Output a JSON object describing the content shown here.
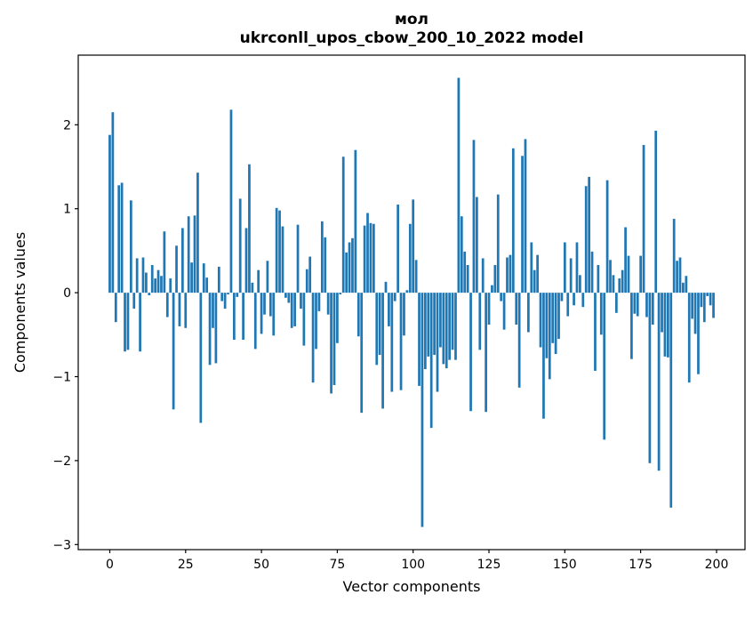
{
  "figure": {
    "title_line1": "мол",
    "title_line2": "ukrconll_upos_cbow_200_10_2022 model"
  },
  "chart_data": {
    "type": "bar",
    "title": "мол",
    "subtitle": "ukrconll_upos_cbow_200_10_2022 model",
    "xlabel": "Vector components",
    "ylabel": "Components values",
    "bar_color": "#1f77b4",
    "grid": false,
    "legend": null,
    "x_start": 0,
    "xticks": [
      0,
      25,
      50,
      75,
      100,
      125,
      150,
      175,
      200
    ],
    "yticks": [
      -3,
      -2,
      -1,
      0,
      1,
      2
    ],
    "xlim": [
      -10.39,
      209.39
    ],
    "ylim": [
      -3.06,
      2.83
    ],
    "values": [
      1.88,
      2.15,
      -0.35,
      1.28,
      1.31,
      -0.7,
      -0.68,
      1.1,
      -0.19,
      0.41,
      -0.7,
      0.42,
      0.24,
      -0.03,
      0.33,
      0.17,
      0.27,
      0.2,
      0.73,
      -0.29,
      0.17,
      -1.39,
      0.56,
      -0.4,
      0.77,
      -0.42,
      0.91,
      0.36,
      0.92,
      1.43,
      -1.55,
      0.35,
      0.18,
      -0.86,
      -0.42,
      -0.84,
      0.31,
      -0.1,
      -0.19,
      -0.02,
      2.18,
      -0.56,
      -0.05,
      1.12,
      -0.56,
      0.77,
      1.53,
      0.12,
      -0.67,
      0.27,
      -0.49,
      -0.26,
      0.38,
      -0.28,
      -0.51,
      1.01,
      0.98,
      0.79,
      -0.06,
      -0.12,
      -0.42,
      -0.4,
      0.81,
      -0.19,
      -0.63,
      0.28,
      0.43,
      -1.07,
      -0.67,
      -0.22,
      0.85,
      0.66,
      -0.26,
      -1.2,
      -1.1,
      -0.6,
      -0.02,
      1.62,
      0.48,
      0.6,
      0.65,
      1.7,
      -0.52,
      -1.43,
      0.8,
      0.95,
      0.83,
      0.82,
      -0.86,
      -0.74,
      -1.38,
      0.13,
      -0.4,
      -1.18,
      -0.1,
      1.05,
      -1.16,
      -0.51,
      0.03,
      0.82,
      1.11,
      0.39,
      -1.11,
      -2.79,
      -0.91,
      -0.76,
      -1.61,
      -0.74,
      -1.18,
      -0.65,
      -0.85,
      -0.9,
      -0.8,
      -0.68,
      -0.8,
      2.56,
      0.91,
      0.49,
      0.33,
      -1.41,
      1.82,
      1.14,
      -0.68,
      0.41,
      -1.42,
      -0.38,
      0.09,
      0.33,
      1.17,
      -0.1,
      -0.44,
      0.42,
      0.45,
      1.72,
      -0.38,
      -1.13,
      1.63,
      1.83,
      -0.47,
      0.6,
      0.27,
      0.45,
      -0.65,
      -1.5,
      -0.78,
      -1.03,
      -0.6,
      -0.73,
      -0.55,
      -0.1,
      0.6,
      -0.28,
      0.41,
      -0.15,
      0.6,
      0.21,
      -0.17,
      1.27,
      1.38,
      0.49,
      -0.93,
      0.33,
      -0.5,
      -1.75,
      1.34,
      0.39,
      0.21,
      -0.24,
      0.17,
      0.27,
      0.78,
      0.44,
      -0.79,
      -0.25,
      -0.28,
      0.44,
      1.76,
      -0.29,
      -2.03,
      -0.38,
      1.93,
      -2.12,
      -0.47,
      -0.76,
      -0.77,
      -2.56,
      0.88,
      0.38,
      0.42,
      0.12,
      0.2,
      -1.07,
      -0.31,
      -0.49,
      -0.97,
      -0.17,
      -0.35,
      -0.04,
      -0.15,
      -0.3
    ]
  }
}
